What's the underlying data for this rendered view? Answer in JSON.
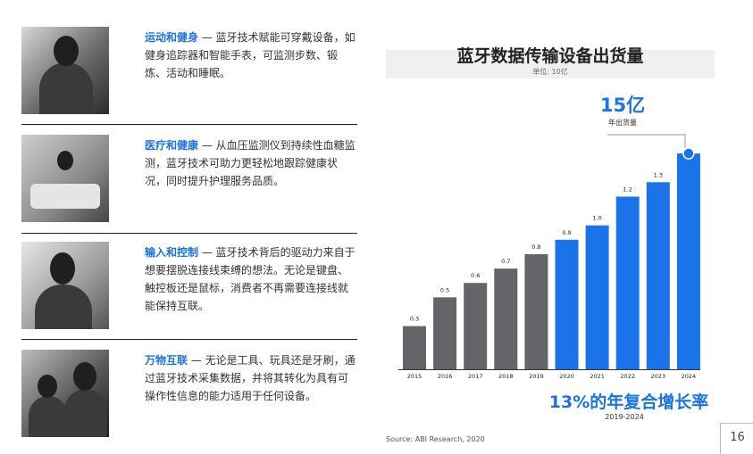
{
  "items": [
    {
      "heading": "运动和健身",
      "body": " — 蓝牙技术赋能可穿戴设备，如健身追踪器和智能手表，可监测步数、锻炼、活动和睡眠。"
    },
    {
      "heading": "医疗和健康",
      "body": " — 从血压监测仪到持续性血糖监测，蓝牙技术可助力更轻松地跟踪健康状况，同时提升护理服务品质。"
    },
    {
      "heading": "输入和控制",
      "body": " — 蓝牙技术背后的驱动力来自于想要摆脱连接线束缚的想法。无论是键盘、触控板还是鼠标，消费者不再需要连接线就能保持互联。"
    },
    {
      "heading": "万物互联",
      "body": " — 无论是工具、玩具还是牙刷，通过蓝牙技术采集数据，并将其转化为具有可操作性信息的能力适用于任何设备。"
    }
  ],
  "chart_data": {
    "type": "bar",
    "title": "蓝牙数据传输设备出货量",
    "unit": "单位: 10亿",
    "categories": [
      "2015",
      "2016",
      "2017",
      "2018",
      "2019",
      "2020",
      "2021",
      "2022",
      "2023",
      "2024"
    ],
    "values": [
      0.3,
      0.5,
      0.6,
      0.7,
      0.8,
      0.9,
      1.0,
      1.2,
      1.3,
      1.5
    ],
    "labels": [
      "0.3",
      "0.5",
      "0.6",
      "0.7",
      "0.8",
      "0.9",
      "1.0",
      "1.2",
      "1.3",
      ""
    ],
    "colors": {
      "historical": "#646469",
      "forecast": "#1a73e8"
    },
    "forecast_from_index": 5,
    "highlight": {
      "value": "15亿",
      "label": "年出货量"
    },
    "growth": {
      "value": "13%的年复合增长率",
      "period": "2019-2024"
    }
  },
  "source": "Source: ABI Research, 2020",
  "page_number": "16"
}
